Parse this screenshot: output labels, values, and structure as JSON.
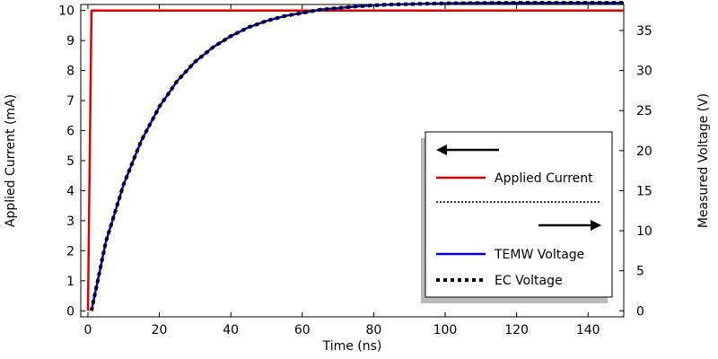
{
  "chart_data": {
    "type": "line",
    "xlabel": "Time (ns)",
    "ylabel_left": "Applied Current (mA)",
    "ylabel_right": "Measured Voltage (V)",
    "xlim": [
      -2,
      150
    ],
    "ylim_left": [
      -0.2,
      10.2
    ],
    "ylim_right": [
      -0.75,
      38.25
    ],
    "x_ticks": [
      0,
      20,
      40,
      60,
      80,
      100,
      120,
      140
    ],
    "y_left_ticks": [
      0,
      1,
      2,
      3,
      4,
      5,
      6,
      7,
      8,
      9,
      10
    ],
    "y_right_ticks": [
      0,
      5,
      10,
      15,
      20,
      25,
      30,
      35
    ],
    "grid": false,
    "legend_placement": "lower-right",
    "series": [
      {
        "name": "Applied Current",
        "axis": "left",
        "color": "#e00000",
        "style": "solid",
        "x": [
          0,
          1,
          150
        ],
        "values": [
          0,
          10,
          10
        ]
      },
      {
        "name": "TEMW Voltage",
        "axis": "right",
        "color": "#0000dd",
        "style": "solid",
        "x": [
          1,
          5,
          10,
          15,
          20,
          25,
          30,
          35,
          40,
          45,
          50,
          55,
          60,
          65,
          70,
          75,
          80,
          85,
          90,
          95,
          100,
          110,
          120,
          130,
          140,
          150
        ],
        "values": [
          0,
          8.6,
          15.8,
          21.3,
          25.5,
          28.7,
          31.1,
          32.9,
          34.3,
          35.4,
          36.2,
          36.8,
          37.2,
          37.6,
          37.8,
          38.0,
          38.15,
          38.25,
          38.3,
          38.35,
          38.4,
          38.43,
          38.45,
          38.46,
          38.46,
          38.46
        ]
      },
      {
        "name": "EC Voltage",
        "axis": "right",
        "color": "#000000",
        "style": "dotted",
        "x": [
          1,
          5,
          10,
          15,
          20,
          25,
          30,
          35,
          40,
          45,
          50,
          55,
          60,
          65,
          70,
          75,
          80,
          85,
          90,
          95,
          100,
          110,
          120,
          130,
          140,
          150
        ],
        "values": [
          0,
          8.6,
          15.8,
          21.3,
          25.5,
          28.7,
          31.1,
          32.9,
          34.3,
          35.4,
          36.2,
          36.8,
          37.2,
          37.6,
          37.8,
          38.0,
          38.15,
          38.25,
          38.3,
          38.35,
          38.4,
          38.43,
          38.45,
          38.46,
          38.46,
          38.46
        ]
      }
    ],
    "legend": [
      {
        "kind": "arrow-left"
      },
      {
        "kind": "entry",
        "label": "Applied Current",
        "color": "#e00000",
        "style": "solid"
      },
      {
        "kind": "separator"
      },
      {
        "kind": "arrow-right"
      },
      {
        "kind": "entry",
        "label": "TEMW Voltage",
        "color": "#0000dd",
        "style": "solid"
      },
      {
        "kind": "entry",
        "label": "EC Voltage",
        "color": "#000000",
        "style": "dotted"
      }
    ]
  }
}
